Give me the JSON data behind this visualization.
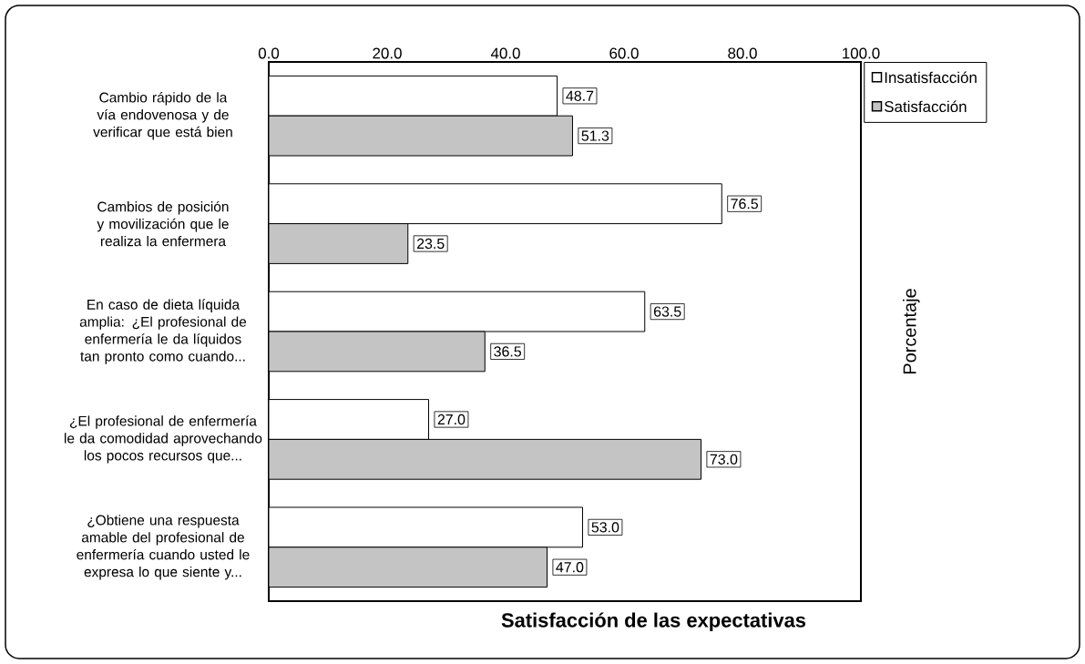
{
  "chart_data": {
    "type": "bar",
    "orientation": "horizontal",
    "xlabel": "Satisfacción de las expectativas",
    "ylabel": "Porcentaje",
    "categories": [
      "Cambio rápido de la vía endovenosa y de verificar que está bien",
      "Cambios de posición y movilización que le realiza la enfermera",
      "En caso de dieta líquida amplia: ¿El profesional de enfermería le da líquidos tan pronto como cuando...",
      "¿El profesional de enfermería le da comodidad aprovechando los pocos recursos que...",
      "¿Obtiene una respuesta amable del profesional de enfermería cuando usted le expresa lo que siente y..."
    ],
    "series": [
      {
        "name": "Insatisfacción",
        "color": "#ffffff",
        "values": [
          48.7,
          76.5,
          63.5,
          27.0,
          53.0
        ],
        "value_labels": [
          "48.7",
          "76.5",
          "63.5",
          "27.0",
          "53.0"
        ]
      },
      {
        "name": "Satisfacción",
        "color": "#c4c4c4",
        "values": [
          51.3,
          23.5,
          36.5,
          73.0,
          47.0
        ],
        "value_labels": [
          "51.3",
          "23.5",
          "36.5",
          "73.0",
          "47.0"
        ]
      }
    ],
    "xlim": [
      0,
      100
    ],
    "xticks": [
      {
        "value": 0,
        "label": "0.0"
      },
      {
        "value": 20,
        "label": "20.0"
      },
      {
        "value": 40,
        "label": "40.0"
      },
      {
        "value": 60,
        "label": "60.0"
      },
      {
        "value": 80,
        "label": "80.0"
      },
      {
        "value": 100,
        "label": "100.0"
      }
    ],
    "legend": "top right"
  }
}
